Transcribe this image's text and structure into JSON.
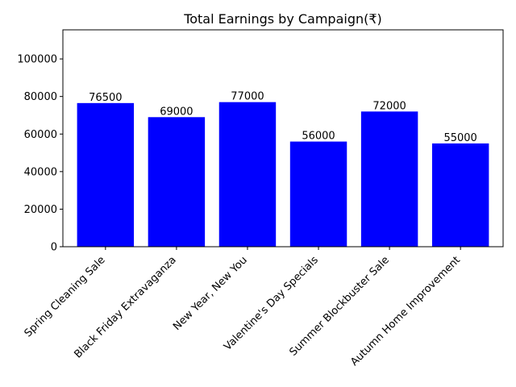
{
  "chart_data": {
    "type": "bar",
    "title": "Total Earnings by Campaign(₹)",
    "xlabel": "",
    "ylabel": "",
    "categories": [
      "Spring Cleaning Sale",
      "Black Friday Extravaganza",
      "New Year, New You",
      "Valentine's Day Specials",
      "Summer Blockbuster Sale",
      "Autumn Home Improvement"
    ],
    "values": [
      76500,
      69000,
      77000,
      56000,
      72000,
      55000
    ],
    "ylim": [
      0,
      115500
    ],
    "yticks": [
      0,
      20000,
      40000,
      60000,
      80000,
      100000
    ],
    "ytick_labels": [
      "0",
      "20000",
      "40000",
      "60000",
      "80000",
      "100000"
    ],
    "data_labels": [
      "76500",
      "69000",
      "77000",
      "56000",
      "72000",
      "55000"
    ],
    "grid": false,
    "bar_color": "#0000ff"
  }
}
